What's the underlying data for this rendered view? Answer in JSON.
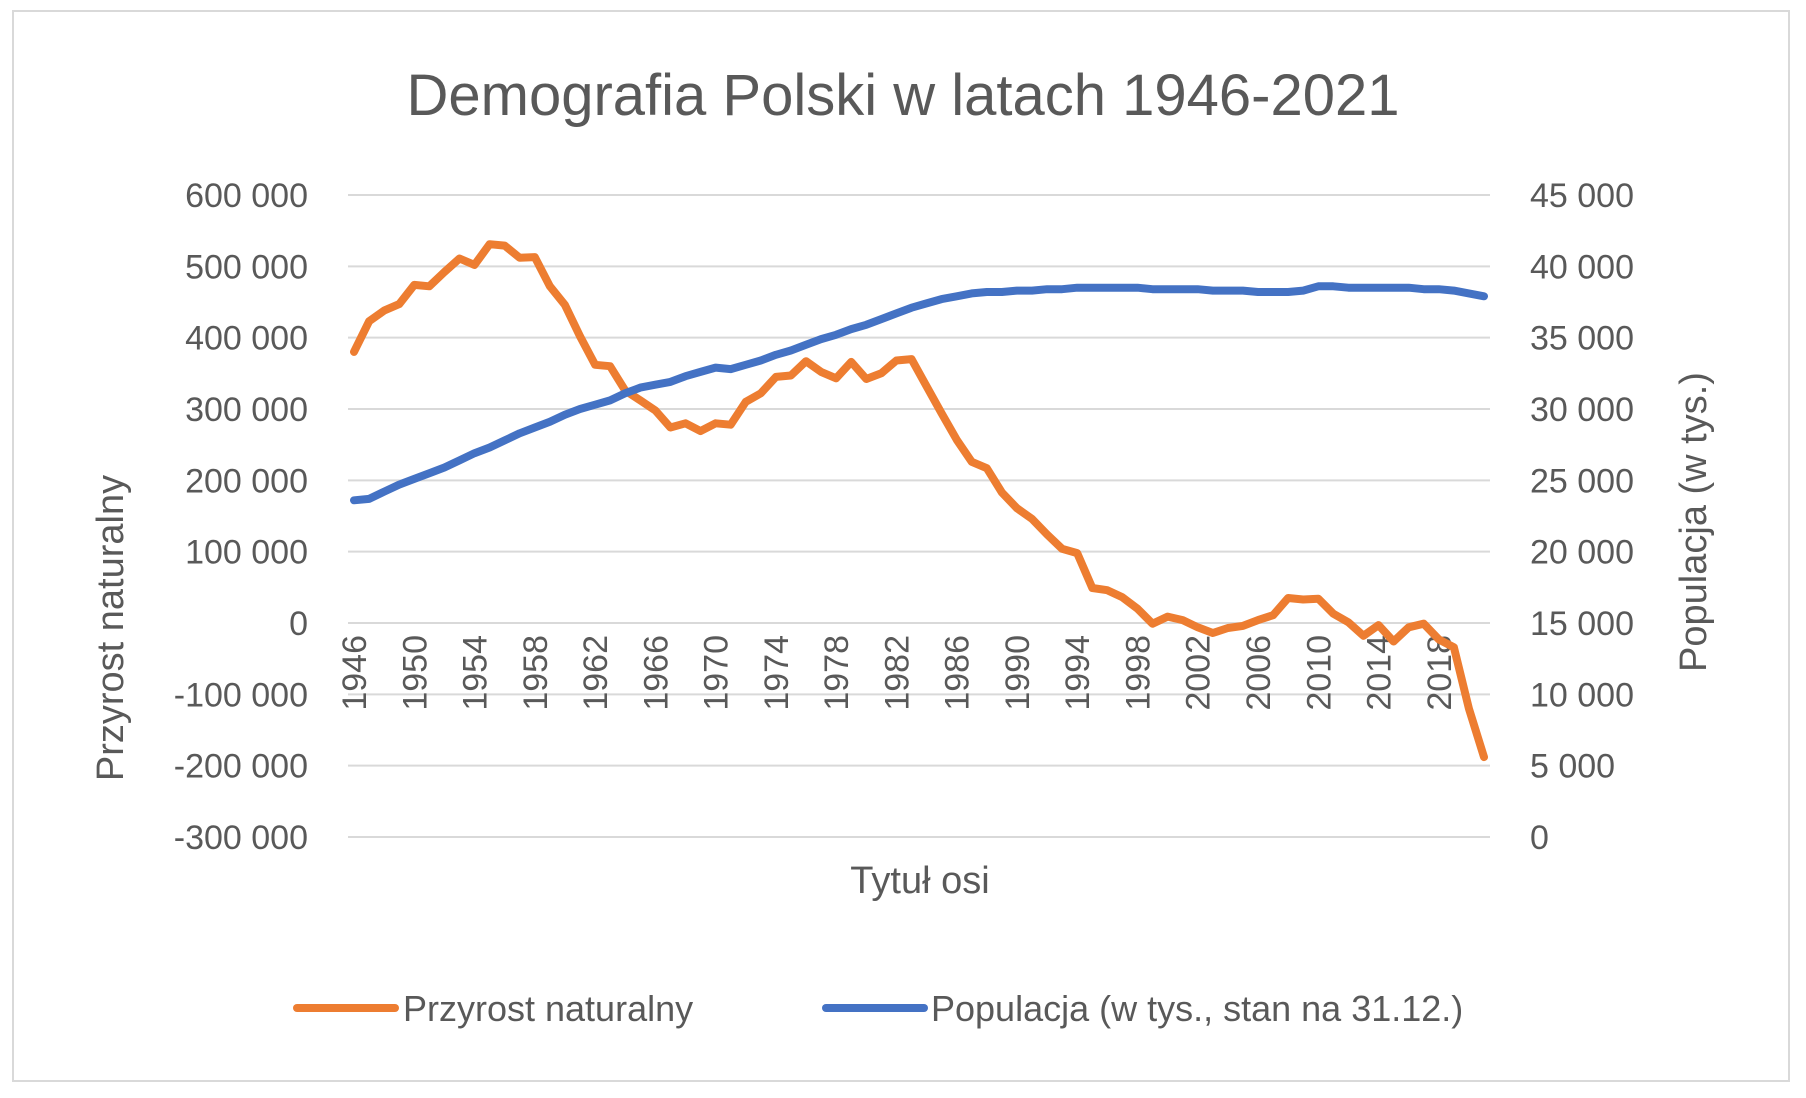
{
  "chart_data": {
    "type": "line",
    "title": "Demografia Polski w latach 1946-2021",
    "xlabel": "Tytuł osi",
    "ylabel_left": "Przyrost naturalny",
    "ylabel_right": "Populacja (w tys.)",
    "x_start": 1946,
    "x_end": 2021,
    "x_tick_labels": [
      "1946",
      "1950",
      "1954",
      "1958",
      "1962",
      "1966",
      "1970",
      "1974",
      "1978",
      "1982",
      "1986",
      "1990",
      "1994",
      "1998",
      "2002",
      "2006",
      "2010",
      "2014",
      "2018"
    ],
    "y_left": {
      "min": -300000,
      "max": 600000,
      "ticks": [
        600000,
        500000,
        400000,
        300000,
        200000,
        100000,
        0,
        -100000,
        -200000,
        -300000
      ],
      "tick_labels": [
        "600 000",
        "500 000",
        "400 000",
        "300 000",
        "200 000",
        "100 000",
        "0",
        "-100 000",
        "-200 000",
        "-300 000"
      ]
    },
    "y_right": {
      "min": 0,
      "max": 45000,
      "ticks": [
        45000,
        40000,
        35000,
        30000,
        25000,
        20000,
        15000,
        10000,
        5000,
        0
      ],
      "tick_labels": [
        "45 000",
        "40 000",
        "35 000",
        "30 000",
        "25 000",
        "20 000",
        "15 000",
        "10 000",
        "5 000",
        "0"
      ]
    },
    "grid": true,
    "legend_position": "bottom",
    "series": [
      {
        "name": "Przyrost naturalny",
        "axis": "left",
        "color": "#ED7D31",
        "values": [
          380000,
          423000,
          438000,
          447000,
          474000,
          472000,
          492000,
          511000,
          502000,
          531000,
          529000,
          512000,
          513000,
          472000,
          446000,
          402000,
          362000,
          360000,
          326000,
          312000,
          298000,
          274000,
          280000,
          269000,
          280000,
          278000,
          310000,
          322000,
          345000,
          347000,
          367000,
          352000,
          343000,
          366000,
          342000,
          350000,
          368000,
          370000,
          332000,
          294000,
          257000,
          226000,
          217000,
          183000,
          161000,
          146000,
          124000,
          104000,
          98000,
          49000,
          46000,
          36000,
          20000,
          -1000,
          9000,
          4000,
          -6000,
          -14000,
          -7000,
          -4000,
          4000,
          11000,
          35000,
          33000,
          34000,
          13000,
          1000,
          -18000,
          -3000,
          -26000,
          -6000,
          -1000,
          -23000,
          -34000,
          -120000,
          -188000
        ]
      },
      {
        "name": "Populacja (w tys., stan na 31.12.)",
        "axis": "right",
        "color": "#4472C4",
        "values": [
          23600,
          23700,
          24200,
          24700,
          25100,
          25500,
          25900,
          26400,
          26900,
          27300,
          27800,
          28300,
          28700,
          29100,
          29600,
          30000,
          30300,
          30600,
          31100,
          31500,
          31700,
          31900,
          32300,
          32600,
          32900,
          32800,
          33100,
          33400,
          33800,
          34100,
          34500,
          34900,
          35200,
          35600,
          35900,
          36300,
          36700,
          37100,
          37400,
          37700,
          37900,
          38100,
          38200,
          38200,
          38300,
          38300,
          38400,
          38400,
          38500,
          38500,
          38500,
          38500,
          38500,
          38400,
          38400,
          38400,
          38400,
          38300,
          38300,
          38300,
          38200,
          38200,
          38200,
          38300,
          38600,
          38600,
          38500,
          38500,
          38500,
          38500,
          38500,
          38400,
          38400,
          38300,
          38100,
          37900
        ]
      }
    ]
  }
}
